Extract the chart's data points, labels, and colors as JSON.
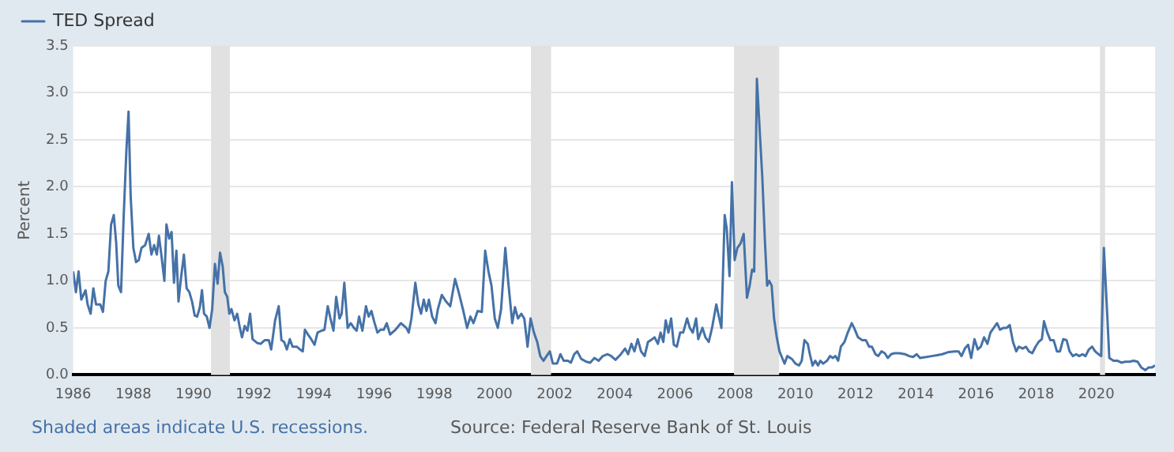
{
  "chart_data": {
    "type": "line",
    "ylabel": "Percent",
    "legend": "top left",
    "grid": "y",
    "marker": "none",
    "line_style": "solid",
    "xlim": [
      1986,
      2021.95
    ],
    "xticks": [
      1986,
      1988,
      1990,
      1992,
      1994,
      1996,
      1998,
      2000,
      2002,
      2004,
      2006,
      2008,
      2010,
      2012,
      2014,
      2016,
      2018,
      2020
    ],
    "ylim": [
      0,
      3.5
    ],
    "yticks": [
      {
        "value": 0,
        "label": "0.0"
      },
      {
        "value": 0.5,
        "label": "0.5"
      },
      {
        "value": 1,
        "label": "1.0"
      },
      {
        "value": 1.5,
        "label": "1.5"
      },
      {
        "value": 2,
        "label": "2.0"
      },
      {
        "value": 2.5,
        "label": "2.5"
      },
      {
        "value": 3,
        "label": "3.0"
      },
      {
        "value": 3.5,
        "label": "3.5"
      }
    ],
    "bands": [
      {
        "axis": "x",
        "from": 1990.58,
        "to": 1991.21,
        "color": "#e1e1e1"
      },
      {
        "axis": "x",
        "from": 2001.21,
        "to": 2001.88,
        "color": "#e1e1e1"
      },
      {
        "axis": "x",
        "from": 2007.96,
        "to": 2009.46,
        "color": "#e1e1e1"
      },
      {
        "axis": "x",
        "from": 2020.12,
        "to": 2020.29,
        "color": "#e1e1e1"
      }
    ],
    "annotations": [
      "Shaded areas indicate U.S. recessions.",
      "Source: Federal Reserve Bank of St. Louis"
    ],
    "series": [
      {
        "name": "TED Spread",
        "color": "#4572a7",
        "x": [
          1986.0,
          1986.09,
          1986.18,
          1986.27,
          1986.41,
          1986.48,
          1986.58,
          1986.67,
          1986.76,
          1986.9,
          1986.99,
          1987.08,
          1987.17,
          1987.26,
          1987.35,
          1987.43,
          1987.5,
          1987.59,
          1987.68,
          1987.77,
          1987.84,
          1987.91,
          1988.0,
          1988.09,
          1988.18,
          1988.27,
          1988.39,
          1988.51,
          1988.6,
          1988.69,
          1988.78,
          1988.85,
          1988.94,
          1989.03,
          1989.1,
          1989.19,
          1989.27,
          1989.35,
          1989.43,
          1989.5,
          1989.59,
          1989.68,
          1989.77,
          1989.86,
          1989.95,
          1990.04,
          1990.12,
          1990.21,
          1990.28,
          1990.35,
          1990.44,
          1990.53,
          1990.62,
          1990.71,
          1990.8,
          1990.88,
          1990.97,
          1991.04,
          1991.12,
          1991.19,
          1991.26,
          1991.36,
          1991.45,
          1991.54,
          1991.61,
          1991.7,
          1991.79,
          1991.88,
          1991.96,
          1992.11,
          1992.23,
          1992.37,
          1992.5,
          1992.58,
          1992.71,
          1992.83,
          1992.92,
          1993.01,
          1993.1,
          1993.2,
          1993.29,
          1993.43,
          1993.54,
          1993.63,
          1993.7,
          1993.82,
          1993.91,
          1994.02,
          1994.12,
          1994.25,
          1994.35,
          1994.46,
          1994.55,
          1994.65,
          1994.74,
          1994.85,
          1994.92,
          1995.01,
          1995.12,
          1995.22,
          1995.33,
          1995.42,
          1995.5,
          1995.61,
          1995.73,
          1995.82,
          1995.91,
          1996.0,
          1996.11,
          1996.21,
          1996.32,
          1996.42,
          1996.53,
          1996.71,
          1996.89,
          1997.07,
          1997.15,
          1997.24,
          1997.37,
          1997.47,
          1997.56,
          1997.65,
          1997.74,
          1997.82,
          1997.93,
          1998.04,
          1998.12,
          1998.25,
          1998.39,
          1998.53,
          1998.69,
          1998.81,
          1998.95,
          1999.09,
          1999.2,
          1999.3,
          1999.44,
          1999.58,
          1999.69,
          1999.8,
          1999.9,
          2000.01,
          2000.11,
          2000.22,
          2000.36,
          2000.46,
          2000.59,
          2000.68,
          2000.78,
          2000.89,
          2000.99,
          2001.1,
          2001.2,
          2001.31,
          2001.42,
          2001.52,
          2001.63,
          2001.73,
          2001.84,
          2001.94,
          2002.08,
          2002.19,
          2002.3,
          2002.44,
          2002.54,
          2002.65,
          2002.75,
          2002.88,
          2003.05,
          2003.18,
          2003.32,
          2003.46,
          2003.6,
          2003.76,
          2003.88,
          2004.02,
          2004.2,
          2004.34,
          2004.44,
          2004.55,
          2004.65,
          2004.76,
          2004.87,
          2004.99,
          2005.1,
          2005.2,
          2005.32,
          2005.43,
          2005.52,
          2005.61,
          2005.69,
          2005.78,
          2005.87,
          2005.96,
          2006.06,
          2006.17,
          2006.27,
          2006.4,
          2006.49,
          2006.59,
          2006.7,
          2006.77,
          2006.91,
          2007.01,
          2007.12,
          2007.23,
          2007.37,
          2007.47,
          2007.54,
          2007.65,
          2007.72,
          2007.81,
          2007.89,
          2007.98,
          2008.07,
          2008.18,
          2008.28,
          2008.39,
          2008.48,
          2008.56,
          2008.63,
          2008.72,
          2008.83,
          2008.9,
          2008.99,
          2009.06,
          2009.13,
          2009.21,
          2009.29,
          2009.38,
          2009.47,
          2009.56,
          2009.64,
          2009.73,
          2009.88,
          2010.0,
          2010.12,
          2010.21,
          2010.3,
          2010.41,
          2010.48,
          2010.57,
          2010.66,
          2010.75,
          2010.83,
          2010.92,
          2011.05,
          2011.15,
          2011.24,
          2011.33,
          2011.42,
          2011.51,
          2011.63,
          2011.74,
          2011.87,
          2011.95,
          2012.08,
          2012.22,
          2012.34,
          2012.45,
          2012.54,
          2012.66,
          2012.75,
          2012.86,
          2012.97,
          2013.07,
          2013.18,
          2013.29,
          2013.46,
          2013.64,
          2013.78,
          2013.91,
          2014.03,
          2014.14,
          2014.35,
          2014.53,
          2014.71,
          2014.88,
          2015.06,
          2015.28,
          2015.42,
          2015.52,
          2015.63,
          2015.74,
          2015.84,
          2015.95,
          2016.06,
          2016.16,
          2016.27,
          2016.38,
          2016.48,
          2016.59,
          2016.7,
          2016.8,
          2016.91,
          2017.02,
          2017.12,
          2017.23,
          2017.34,
          2017.42,
          2017.55,
          2017.66,
          2017.76,
          2017.87,
          2017.98,
          2018.08,
          2018.19,
          2018.26,
          2018.37,
          2018.47,
          2018.58,
          2018.69,
          2018.79,
          2018.9,
          2019.01,
          2019.11,
          2019.22,
          2019.33,
          2019.43,
          2019.54,
          2019.64,
          2019.75,
          2019.86,
          2019.96,
          2020.07,
          2020.16,
          2020.25,
          2020.36,
          2020.43,
          2020.57,
          2020.71,
          2020.83,
          2020.96,
          2021.1,
          2021.24,
          2021.37,
          2021.49,
          2021.63,
          2021.74,
          2021.85,
          2021.95
        ],
        "values": [
          1.1,
          0.88,
          1.1,
          0.8,
          0.9,
          0.75,
          0.65,
          0.92,
          0.75,
          0.75,
          0.67,
          1.0,
          1.1,
          1.6,
          1.7,
          1.4,
          0.95,
          0.88,
          1.7,
          2.4,
          2.8,
          1.9,
          1.35,
          1.2,
          1.22,
          1.35,
          1.38,
          1.5,
          1.28,
          1.38,
          1.28,
          1.48,
          1.25,
          1.0,
          1.6,
          1.45,
          1.52,
          0.98,
          1.32,
          0.78,
          1.05,
          1.28,
          0.92,
          0.88,
          0.78,
          0.63,
          0.62,
          0.72,
          0.9,
          0.65,
          0.62,
          0.5,
          0.7,
          1.18,
          0.97,
          1.3,
          1.15,
          0.88,
          0.83,
          0.65,
          0.7,
          0.58,
          0.65,
          0.5,
          0.4,
          0.52,
          0.47,
          0.65,
          0.38,
          0.34,
          0.33,
          0.37,
          0.37,
          0.27,
          0.58,
          0.73,
          0.37,
          0.35,
          0.27,
          0.38,
          0.3,
          0.3,
          0.27,
          0.25,
          0.48,
          0.42,
          0.38,
          0.32,
          0.45,
          0.47,
          0.48,
          0.73,
          0.6,
          0.47,
          0.83,
          0.6,
          0.65,
          0.98,
          0.5,
          0.55,
          0.5,
          0.47,
          0.62,
          0.47,
          0.73,
          0.62,
          0.68,
          0.57,
          0.45,
          0.48,
          0.48,
          0.55,
          0.43,
          0.48,
          0.55,
          0.5,
          0.45,
          0.6,
          0.98,
          0.75,
          0.65,
          0.8,
          0.68,
          0.8,
          0.62,
          0.55,
          0.7,
          0.85,
          0.78,
          0.73,
          1.02,
          0.88,
          0.7,
          0.5,
          0.62,
          0.55,
          0.68,
          0.67,
          1.32,
          1.1,
          0.95,
          0.6,
          0.5,
          0.7,
          1.35,
          0.98,
          0.55,
          0.72,
          0.6,
          0.65,
          0.6,
          0.3,
          0.6,
          0.45,
          0.35,
          0.2,
          0.15,
          0.2,
          0.25,
          0.12,
          0.12,
          0.22,
          0.15,
          0.15,
          0.13,
          0.22,
          0.25,
          0.17,
          0.14,
          0.13,
          0.18,
          0.15,
          0.2,
          0.22,
          0.2,
          0.16,
          0.22,
          0.28,
          0.22,
          0.33,
          0.25,
          0.38,
          0.25,
          0.2,
          0.35,
          0.37,
          0.4,
          0.33,
          0.45,
          0.35,
          0.58,
          0.45,
          0.6,
          0.32,
          0.3,
          0.45,
          0.45,
          0.6,
          0.5,
          0.45,
          0.6,
          0.38,
          0.5,
          0.4,
          0.35,
          0.5,
          0.75,
          0.6,
          0.5,
          1.7,
          1.55,
          1.05,
          2.05,
          1.22,
          1.35,
          1.4,
          1.5,
          0.82,
          0.95,
          1.12,
          1.1,
          3.15,
          2.5,
          2.1,
          1.4,
          0.95,
          1.0,
          0.95,
          0.6,
          0.4,
          0.25,
          0.18,
          0.12,
          0.2,
          0.17,
          0.12,
          0.1,
          0.15,
          0.37,
          0.33,
          0.22,
          0.1,
          0.15,
          0.1,
          0.15,
          0.12,
          0.15,
          0.2,
          0.18,
          0.2,
          0.15,
          0.3,
          0.35,
          0.45,
          0.55,
          0.5,
          0.4,
          0.37,
          0.37,
          0.3,
          0.3,
          0.22,
          0.2,
          0.25,
          0.23,
          0.18,
          0.22,
          0.23,
          0.23,
          0.22,
          0.2,
          0.19,
          0.22,
          0.18,
          0.19,
          0.2,
          0.21,
          0.22,
          0.24,
          0.25,
          0.25,
          0.2,
          0.28,
          0.32,
          0.18,
          0.38,
          0.27,
          0.3,
          0.4,
          0.33,
          0.45,
          0.5,
          0.55,
          0.48,
          0.5,
          0.5,
          0.53,
          0.35,
          0.25,
          0.3,
          0.28,
          0.3,
          0.25,
          0.23,
          0.3,
          0.35,
          0.38,
          0.57,
          0.45,
          0.37,
          0.37,
          0.25,
          0.25,
          0.38,
          0.37,
          0.25,
          0.2,
          0.22,
          0.2,
          0.22,
          0.2,
          0.27,
          0.3,
          0.25,
          0.22,
          0.2,
          1.35,
          0.65,
          0.18,
          0.15,
          0.15,
          0.13,
          0.14,
          0.14,
          0.15,
          0.14,
          0.08,
          0.05,
          0.08,
          0.08,
          0.1
        ]
      }
    ]
  }
}
